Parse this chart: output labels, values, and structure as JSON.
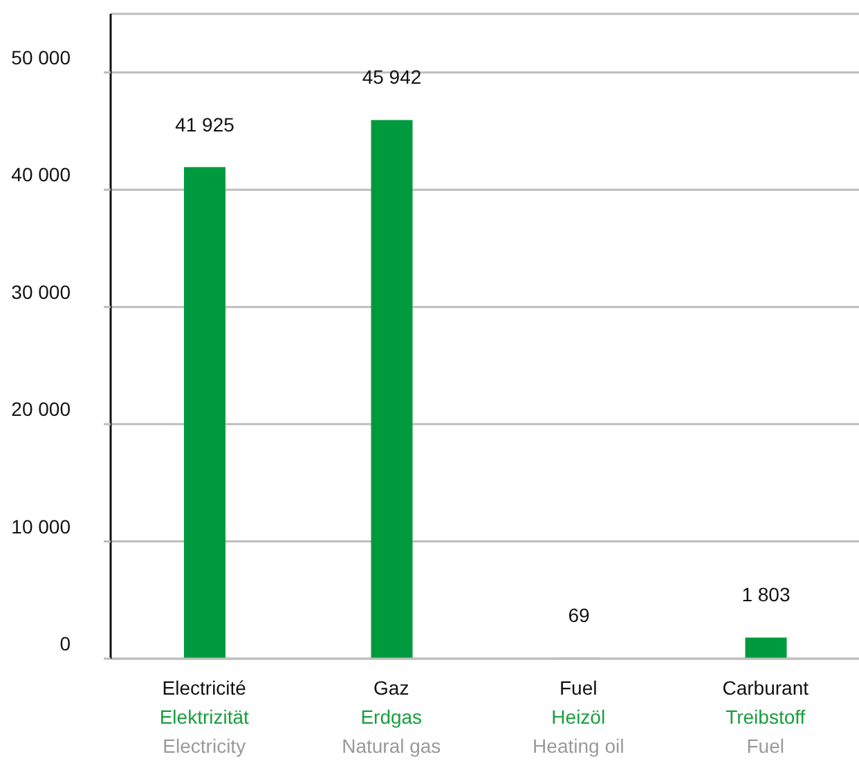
{
  "chart_data": {
    "type": "bar",
    "categories": [
      "Electricité\nElektrizität\nElectricity",
      "Gaz\nErdgas\nNatural gas",
      "Fuel\nHeizöl\nHeating oil",
      "Carburant\nTreibstoff\nFuel"
    ],
    "values": [
      41925,
      45942,
      69,
      1803
    ],
    "color": "#009a3e",
    "value_labels": [
      "41 925",
      "45 942",
      "69",
      "1 803"
    ],
    "ylim": [
      0,
      55000
    ],
    "yticks": [
      {
        "value": 0,
        "label": "0"
      },
      {
        "value": 10000,
        "label": "10 000"
      },
      {
        "value": 20000,
        "label": "20 000"
      },
      {
        "value": 30000,
        "label": "30 000"
      },
      {
        "value": 40000,
        "label": "40 000"
      },
      {
        "value": 50000,
        "label": "50 000"
      }
    ],
    "grid": "y",
    "legend": false
  }
}
